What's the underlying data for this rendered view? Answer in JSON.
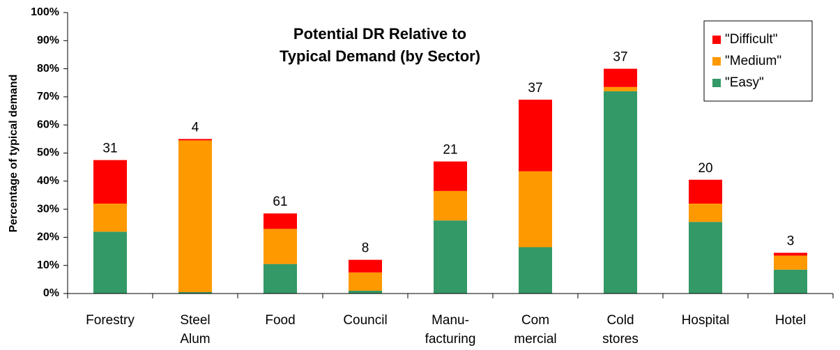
{
  "chart_data": {
    "type": "stacked_bar",
    "title": [
      "Potential DR Relative to",
      "Typical Demand (by Sector)"
    ],
    "y_label": "Percentage of typical demand",
    "categories": [
      [
        "Forestry"
      ],
      [
        "Steel",
        "Alum"
      ],
      [
        "Food"
      ],
      [
        "Council"
      ],
      [
        "Manu-",
        "facturing"
      ],
      [
        "Com",
        "mercial"
      ],
      [
        "Cold",
        "stores"
      ],
      [
        "Hospital"
      ],
      [
        "Hotel"
      ]
    ],
    "series": [
      {
        "name": "\"Easy\"",
        "color": "#339966",
        "values": [
          22,
          0.5,
          10.5,
          1,
          26,
          16.5,
          72,
          25.5,
          8.5
        ]
      },
      {
        "name": "\"Medium\"",
        "color": "#ff9900",
        "values": [
          10,
          54,
          12.5,
          6.5,
          10.5,
          27,
          1.5,
          6.5,
          5
        ]
      },
      {
        "name": "\"Difficult\"",
        "color": "#ff0000",
        "values": [
          15.5,
          0.5,
          5.5,
          4.5,
          10.5,
          25.5,
          6.5,
          8.5,
          1
        ]
      }
    ],
    "bar_top_labels": [
      31,
      4,
      61,
      8,
      21,
      37,
      37,
      20,
      3
    ],
    "ylim": [
      0,
      100
    ],
    "yticks": [
      {
        "value": 0,
        "label": "0%"
      },
      {
        "value": 10,
        "label": "10%"
      },
      {
        "value": 20,
        "label": "20%"
      },
      {
        "value": 30,
        "label": "30%"
      },
      {
        "value": 40,
        "label": "40%"
      },
      {
        "value": 50,
        "label": "50%"
      },
      {
        "value": 60,
        "label": "60%"
      },
      {
        "value": 70,
        "label": "70%"
      },
      {
        "value": 80,
        "label": "80%"
      },
      {
        "value": 90,
        "label": "90%"
      },
      {
        "value": 100,
        "label": "100%"
      }
    ],
    "grid": false,
    "legend_position": "upper-right"
  }
}
